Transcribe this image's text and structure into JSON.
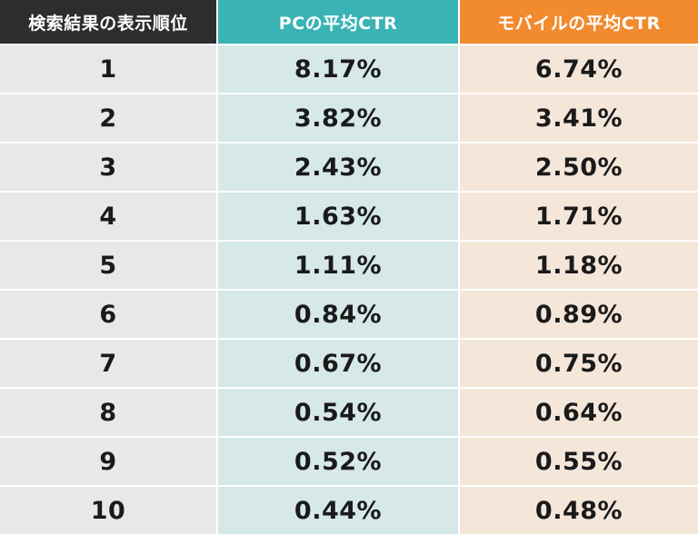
{
  "table": {
    "headers": {
      "rank": "検索結果の表示順位",
      "pc": "PCの平均CTR",
      "mobile": "モバイルの平均CTR"
    },
    "rows": [
      {
        "rank": "1",
        "pc": "8.17%",
        "mobile": "6.74%"
      },
      {
        "rank": "2",
        "pc": "3.82%",
        "mobile": "3.41%"
      },
      {
        "rank": "3",
        "pc": "2.43%",
        "mobile": "2.50%"
      },
      {
        "rank": "4",
        "pc": "1.63%",
        "mobile": "1.71%"
      },
      {
        "rank": "5",
        "pc": "1.11%",
        "mobile": "1.18%"
      },
      {
        "rank": "6",
        "pc": "0.84%",
        "mobile": "0.89%"
      },
      {
        "rank": "7",
        "pc": "0.67%",
        "mobile": "0.75%"
      },
      {
        "rank": "8",
        "pc": "0.54%",
        "mobile": "0.64%"
      },
      {
        "rank": "9",
        "pc": "0.52%",
        "mobile": "0.55%"
      },
      {
        "rank": "10",
        "pc": "0.44%",
        "mobile": "0.48%"
      }
    ]
  },
  "chart_data": {
    "type": "table",
    "columns": [
      "検索結果の表示順位",
      "PCの平均CTR",
      "モバイルの平均CTR"
    ],
    "rows": [
      [
        1,
        8.17,
        6.74
      ],
      [
        2,
        3.82,
        3.41
      ],
      [
        3,
        2.43,
        2.5
      ],
      [
        4,
        1.63,
        1.71
      ],
      [
        5,
        1.11,
        1.18
      ],
      [
        6,
        0.84,
        0.89
      ],
      [
        7,
        0.67,
        0.75
      ],
      [
        8,
        0.54,
        0.64
      ],
      [
        9,
        0.52,
        0.55
      ],
      [
        10,
        0.44,
        0.48
      ]
    ]
  },
  "colors": {
    "header_rank_bg": "#2b2d2f",
    "header_pc_bg": "#3ab3b5",
    "header_mobile_bg": "#f28a2e",
    "cell_rank_bg": "#e8e8e8",
    "cell_pc_bg": "#d6e8e8",
    "cell_mobile_bg": "#f5e6da"
  }
}
